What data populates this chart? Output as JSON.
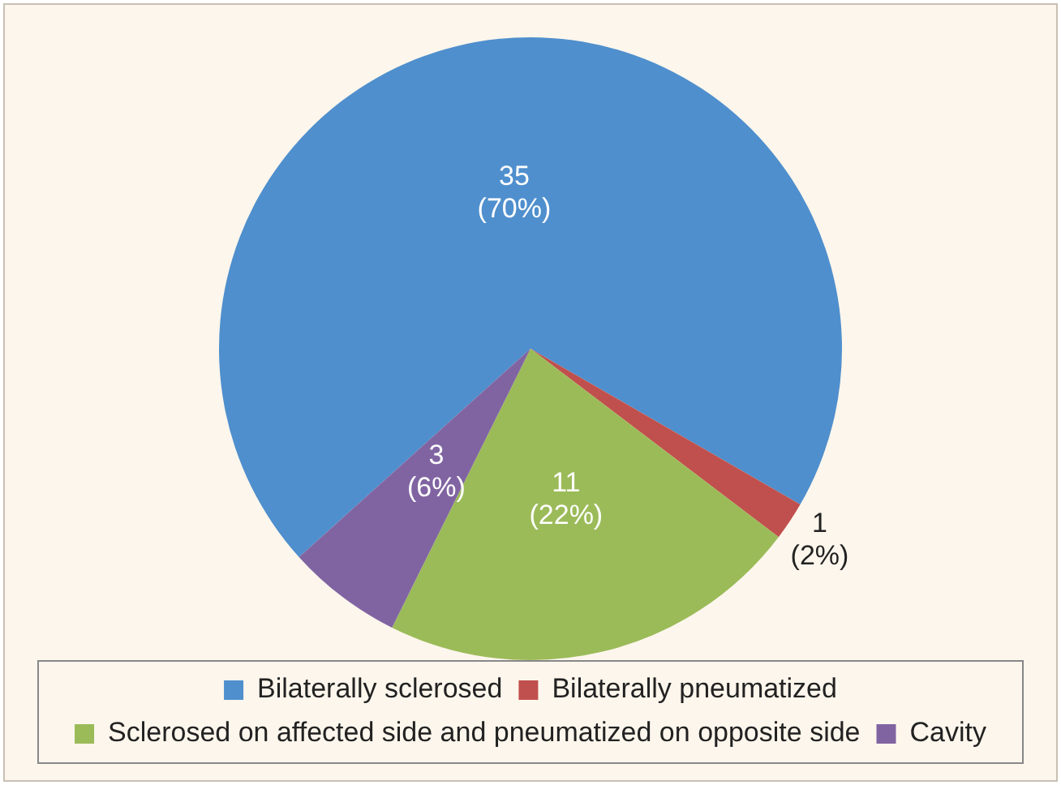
{
  "chart_data": {
    "type": "pie",
    "categories": [
      "Bilaterally sclerosed",
      "Bilaterally pneumatized",
      "Sclerosed on affected side and pneumatized on opposite side",
      "Cavity"
    ],
    "values": [
      35,
      1,
      11,
      3
    ],
    "colors": [
      "#4f8fcd",
      "#c0504d",
      "#9bbb59",
      "#8064a2"
    ],
    "value_labels": [
      "35\n(70%)",
      "1\n(2%)",
      "11\n(22%)",
      "3\n(6%)"
    ],
    "legend": "bottom"
  }
}
